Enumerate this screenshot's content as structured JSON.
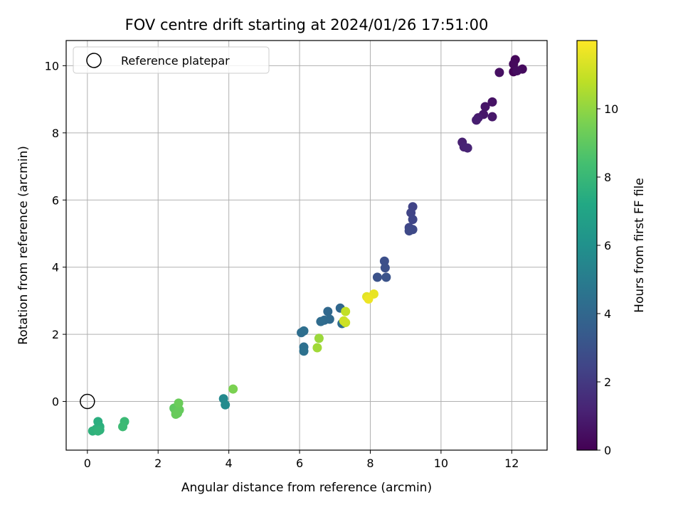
{
  "chart_data": {
    "type": "scatter",
    "title": "FOV centre drift starting at 2024/01/26 17:51:00",
    "xlabel": "Angular distance from reference (arcmin)",
    "ylabel": "Rotation from reference (arcmin)",
    "xlim": [
      -0.6,
      13.0
    ],
    "ylim": [
      -1.45,
      10.75
    ],
    "xticks": [
      0,
      2,
      4,
      6,
      8,
      10,
      12
    ],
    "yticks": [
      0,
      2,
      4,
      6,
      8,
      10
    ],
    "grid": true,
    "legend": {
      "position": "top-left",
      "entries": [
        "Reference platepar"
      ]
    },
    "reference_point": {
      "x": 0,
      "y": 0
    },
    "colorbar": {
      "label": "Hours from first FF file",
      "range": [
        0,
        12
      ],
      "ticks": [
        0,
        2,
        4,
        6,
        8,
        10
      ],
      "colormap": "viridis"
    },
    "points": [
      {
        "x": 12.05,
        "y": 9.82,
        "t": 0.1
      },
      {
        "x": 12.1,
        "y": 10.18,
        "t": 0.2
      },
      {
        "x": 12.05,
        "y": 10.05,
        "t": 0.3
      },
      {
        "x": 12.3,
        "y": 9.9,
        "t": 0.35
      },
      {
        "x": 12.15,
        "y": 9.85,
        "t": 0.4
      },
      {
        "x": 11.65,
        "y": 9.8,
        "t": 0.5
      },
      {
        "x": 11.45,
        "y": 8.92,
        "t": 0.6
      },
      {
        "x": 11.25,
        "y": 8.78,
        "t": 0.7
      },
      {
        "x": 11.2,
        "y": 8.55,
        "t": 0.75
      },
      {
        "x": 11.45,
        "y": 8.48,
        "t": 0.8
      },
      {
        "x": 11.05,
        "y": 8.45,
        "t": 0.9
      },
      {
        "x": 11.0,
        "y": 8.38,
        "t": 1.0
      },
      {
        "x": 10.6,
        "y": 7.72,
        "t": 1.1
      },
      {
        "x": 10.65,
        "y": 7.58,
        "t": 1.15
      },
      {
        "x": 10.75,
        "y": 7.55,
        "t": 1.2
      },
      {
        "x": 9.2,
        "y": 5.8,
        "t": 2.4
      },
      {
        "x": 9.15,
        "y": 5.62,
        "t": 2.45
      },
      {
        "x": 9.2,
        "y": 5.42,
        "t": 2.5
      },
      {
        "x": 9.1,
        "y": 5.18,
        "t": 2.55
      },
      {
        "x": 9.2,
        "y": 5.12,
        "t": 2.6
      },
      {
        "x": 9.1,
        "y": 5.08,
        "t": 2.65
      },
      {
        "x": 8.4,
        "y": 4.18,
        "t": 2.9
      },
      {
        "x": 8.42,
        "y": 3.98,
        "t": 2.95
      },
      {
        "x": 8.2,
        "y": 3.7,
        "t": 3.0
      },
      {
        "x": 8.45,
        "y": 3.7,
        "t": 3.05
      },
      {
        "x": 7.15,
        "y": 2.78,
        "t": 4.0
      },
      {
        "x": 6.8,
        "y": 2.68,
        "t": 4.05
      },
      {
        "x": 6.85,
        "y": 2.45,
        "t": 4.1
      },
      {
        "x": 6.7,
        "y": 2.42,
        "t": 4.15
      },
      {
        "x": 6.6,
        "y": 2.38,
        "t": 4.2
      },
      {
        "x": 7.2,
        "y": 2.32,
        "t": 4.25
      },
      {
        "x": 6.05,
        "y": 2.05,
        "t": 4.3
      },
      {
        "x": 6.12,
        "y": 2.1,
        "t": 4.35
      },
      {
        "x": 6.12,
        "y": 1.62,
        "t": 4.4
      },
      {
        "x": 6.12,
        "y": 1.5,
        "t": 4.45
      },
      {
        "x": 3.85,
        "y": 0.08,
        "t": 5.6
      },
      {
        "x": 3.9,
        "y": -0.1,
        "t": 5.7
      },
      {
        "x": 0.3,
        "y": -0.6,
        "t": 7.5
      },
      {
        "x": 0.35,
        "y": -0.75,
        "t": 7.55
      },
      {
        "x": 0.25,
        "y": -0.82,
        "t": 7.6
      },
      {
        "x": 0.15,
        "y": -0.88,
        "t": 7.65
      },
      {
        "x": 0.35,
        "y": -0.85,
        "t": 7.7
      },
      {
        "x": 0.3,
        "y": -0.88,
        "t": 7.75
      },
      {
        "x": 1.05,
        "y": -0.6,
        "t": 8.1
      },
      {
        "x": 1.0,
        "y": -0.75,
        "t": 8.15
      },
      {
        "x": 2.45,
        "y": -0.2,
        "t": 9.0
      },
      {
        "x": 2.5,
        "y": -0.3,
        "t": 9.05
      },
      {
        "x": 2.55,
        "y": -0.35,
        "t": 9.1
      },
      {
        "x": 2.6,
        "y": -0.25,
        "t": 9.15
      },
      {
        "x": 2.5,
        "y": -0.38,
        "t": 9.2
      },
      {
        "x": 2.58,
        "y": -0.05,
        "t": 9.25
      },
      {
        "x": 4.12,
        "y": 0.37,
        "t": 9.6
      },
      {
        "x": 6.55,
        "y": 1.88,
        "t": 10.2
      },
      {
        "x": 6.5,
        "y": 1.6,
        "t": 10.3
      },
      {
        "x": 7.3,
        "y": 2.68,
        "t": 10.9
      },
      {
        "x": 7.3,
        "y": 2.35,
        "t": 11.0
      },
      {
        "x": 7.25,
        "y": 2.4,
        "t": 11.1
      },
      {
        "x": 7.9,
        "y": 3.12,
        "t": 11.5
      },
      {
        "x": 8.1,
        "y": 3.2,
        "t": 11.6
      },
      {
        "x": 7.95,
        "y": 3.05,
        "t": 11.7
      }
    ]
  }
}
